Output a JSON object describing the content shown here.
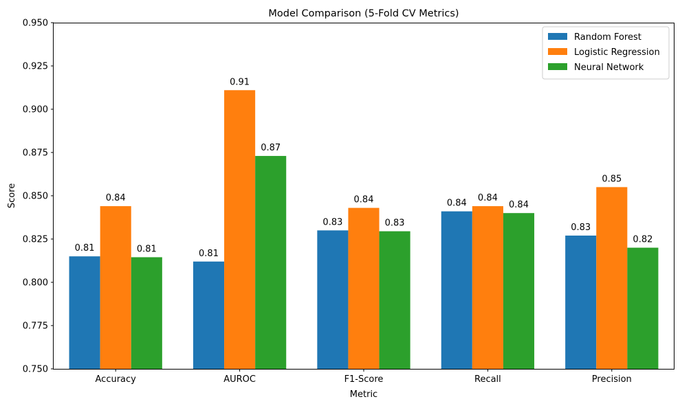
{
  "chart_data": {
    "type": "bar",
    "title": "Model Comparison (5-Fold CV Metrics)",
    "xlabel": "Metric",
    "ylabel": "Score",
    "ylim": [
      0.75,
      0.95
    ],
    "yticks": [
      "0.750",
      "0.775",
      "0.800",
      "0.825",
      "0.850",
      "0.875",
      "0.900",
      "0.925",
      "0.950"
    ],
    "ytick_values": [
      0.75,
      0.775,
      0.8,
      0.825,
      0.85,
      0.875,
      0.9,
      0.925,
      0.95
    ],
    "categories": [
      "Accuracy",
      "AUROC",
      "F1-Score",
      "Recall",
      "Precision"
    ],
    "series": [
      {
        "name": "Random Forest",
        "color": "#1f77b4",
        "values": [
          0.815,
          0.812,
          0.83,
          0.841,
          0.827
        ],
        "labels": [
          "0.81",
          "0.81",
          "0.83",
          "0.84",
          "0.83"
        ]
      },
      {
        "name": "Logistic Regression",
        "color": "#ff7f0e",
        "values": [
          0.844,
          0.911,
          0.843,
          0.844,
          0.855
        ],
        "labels": [
          "0.84",
          "0.91",
          "0.84",
          "0.84",
          "0.85"
        ]
      },
      {
        "name": "Neural Network",
        "color": "#2ca02c",
        "values": [
          0.8145,
          0.873,
          0.8295,
          0.84,
          0.82
        ],
        "labels": [
          "0.81",
          "0.87",
          "0.83",
          "0.84",
          "0.82"
        ]
      }
    ],
    "legend": "top-right",
    "grid": false
  }
}
